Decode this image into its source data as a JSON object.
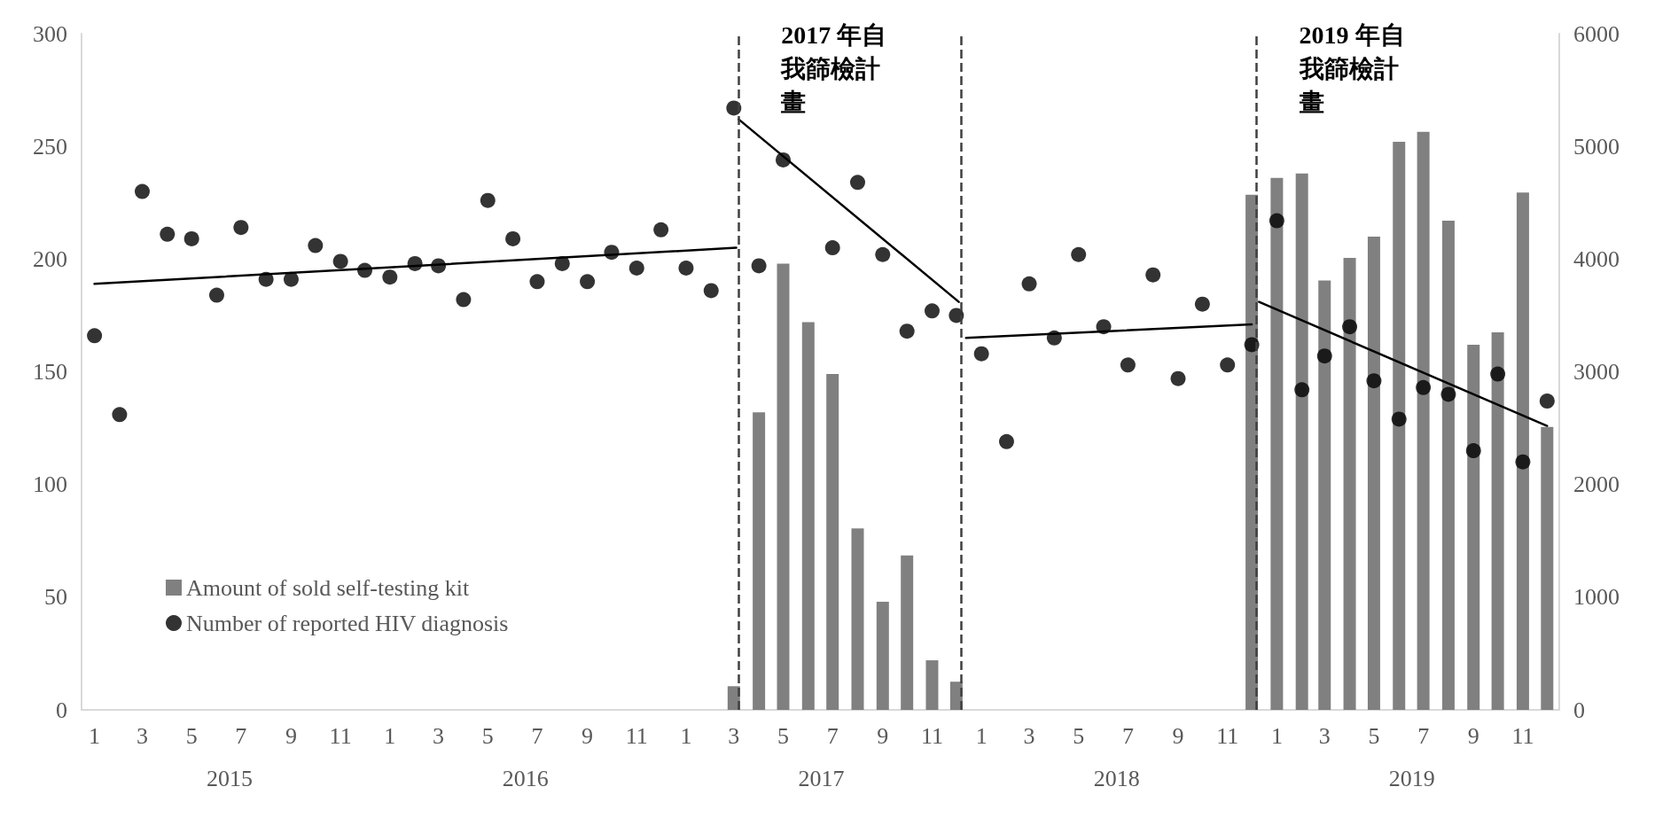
{
  "chart_data": {
    "type": "bar",
    "x": [
      "2015-01",
      "2015-02",
      "2015-03",
      "2015-04",
      "2015-05",
      "2015-06",
      "2015-07",
      "2015-08",
      "2015-09",
      "2015-10",
      "2015-11",
      "2015-12",
      "2016-01",
      "2016-02",
      "2016-03",
      "2016-04",
      "2016-05",
      "2016-06",
      "2016-07",
      "2016-08",
      "2016-09",
      "2016-10",
      "2016-11",
      "2016-12",
      "2017-01",
      "2017-02",
      "2017-03",
      "2017-04",
      "2017-05",
      "2017-06",
      "2017-07",
      "2017-08",
      "2017-09",
      "2017-10",
      "2017-11",
      "2017-12",
      "2018-01",
      "2018-02",
      "2018-03",
      "2018-04",
      "2018-05",
      "2018-06",
      "2018-07",
      "2018-08",
      "2018-09",
      "2018-10",
      "2018-11",
      "2018-12",
      "2019-01",
      "2019-02",
      "2019-03",
      "2019-04",
      "2019-05",
      "2019-06",
      "2019-07",
      "2019-08",
      "2019-09",
      "2019-10",
      "2019-11",
      "2019-12"
    ],
    "series": [
      {
        "name": "Amount of sold self-testing kit",
        "axis": "y2",
        "color": "#808080",
        "values": [
          null,
          null,
          null,
          null,
          null,
          null,
          null,
          null,
          null,
          null,
          null,
          null,
          null,
          null,
          null,
          null,
          null,
          null,
          null,
          null,
          null,
          null,
          null,
          null,
          null,
          null,
          210,
          2640,
          3960,
          3440,
          2980,
          1610,
          960,
          1370,
          440,
          250,
          null,
          null,
          null,
          null,
          null,
          null,
          null,
          null,
          null,
          null,
          null,
          4570,
          4720,
          4760,
          3810,
          4010,
          4200,
          5040,
          5130,
          4340,
          3240,
          3350,
          4590,
          2510
        ]
      },
      {
        "name": "Number of reported HIV diagnosis",
        "type": "scatter",
        "color": "#000000",
        "marker": "circle",
        "values": [
          166,
          131,
          230,
          211,
          209,
          184,
          214,
          191,
          191,
          206,
          199,
          195,
          192,
          198,
          197,
          182,
          226,
          209,
          190,
          198,
          190,
          203,
          196,
          213,
          196,
          186,
          267,
          197,
          244,
          null,
          205,
          234,
          202,
          168,
          177,
          175,
          158,
          119,
          189,
          165,
          202,
          170,
          153,
          193,
          147,
          180,
          153,
          162,
          217,
          142,
          157,
          170,
          146,
          129,
          143,
          140,
          115,
          149,
          110,
          137
        ]
      },
      {
        "type": "line",
        "color": "#000000",
        "marker": "none",
        "x": [
          "2015-01",
          "2017-03-04"
        ],
        "values": [
          189,
          205
        ]
      },
      {
        "type": "line",
        "color": "#000000",
        "marker": "none",
        "x": [
          "2017-03-07",
          "2017-12-04"
        ],
        "values": [
          262,
          181
        ]
      },
      {
        "type": "line",
        "color": "#000000",
        "marker": "none",
        "x": [
          "2017-12-13",
          "2018-12"
        ],
        "values": [
          165,
          171
        ]
      },
      {
        "type": "line",
        "color": "#000000",
        "marker": "none",
        "x": [
          "2018-12-10",
          "2019-12"
        ],
        "values": [
          181,
          126
        ]
      }
    ],
    "xlim": [
      "2014-12-16",
      "2019-12-16"
    ],
    "xticks": [
      {
        "value": "2015-01",
        "label": "1"
      },
      {
        "value": "2015-03",
        "label": "3"
      },
      {
        "value": "2015-05",
        "label": "5"
      },
      {
        "value": "2015-07",
        "label": "7"
      },
      {
        "value": "2015-09",
        "label": "9"
      },
      {
        "value": "2015-11",
        "label": "11"
      },
      {
        "value": "2016-01",
        "label": "1"
      },
      {
        "value": "2016-03",
        "label": "3"
      },
      {
        "value": "2016-05",
        "label": "5"
      },
      {
        "value": "2016-07",
        "label": "7"
      },
      {
        "value": "2016-09",
        "label": "9"
      },
      {
        "value": "2016-11",
        "label": "11"
      },
      {
        "value": "2017-01",
        "label": "1"
      },
      {
        "value": "2017-03",
        "label": "3"
      },
      {
        "value": "2017-05",
        "label": "5"
      },
      {
        "value": "2017-07",
        "label": "7"
      },
      {
        "value": "2017-09",
        "label": "9"
      },
      {
        "value": "2017-11",
        "label": "11"
      },
      {
        "value": "2018-01",
        "label": "1"
      },
      {
        "value": "2018-03",
        "label": "3"
      },
      {
        "value": "2018-05",
        "label": "5"
      },
      {
        "value": "2018-07",
        "label": "7"
      },
      {
        "value": "2018-09",
        "label": "9"
      },
      {
        "value": "2018-11",
        "label": "11"
      },
      {
        "value": "2019-01",
        "label": "1"
      },
      {
        "value": "2019-03",
        "label": "3"
      },
      {
        "value": "2019-05",
        "label": "5"
      },
      {
        "value": "2019-07",
        "label": "7"
      },
      {
        "value": "2019-09",
        "label": "9"
      },
      {
        "value": "2019-11",
        "label": "11"
      }
    ],
    "ylim": [
      0,
      300
    ],
    "yticks": [
      0,
      50,
      100,
      150,
      200,
      250,
      300
    ],
    "y2lim": [
      0,
      6000
    ],
    "y2ticks": [
      0,
      1000,
      2000,
      3000,
      4000,
      5000,
      6000
    ],
    "ref_lines": [
      {
        "axis": "x",
        "value": "2017-03-07",
        "color": "#404040",
        "line_style": "dashed"
      },
      {
        "axis": "x",
        "value": "2017-12-07",
        "color": "#404040",
        "line_style": "dashed"
      },
      {
        "axis": "x",
        "value": "2018-12-07",
        "color": "#404040",
        "line_style": "dashed"
      }
    ],
    "annotations": [
      "2017 年自我篩檢計畫",
      "2019 年自我篩檢計畫",
      "2015",
      "2016",
      "2017",
      "2018",
      "2019"
    ],
    "legend": "bottom left"
  }
}
